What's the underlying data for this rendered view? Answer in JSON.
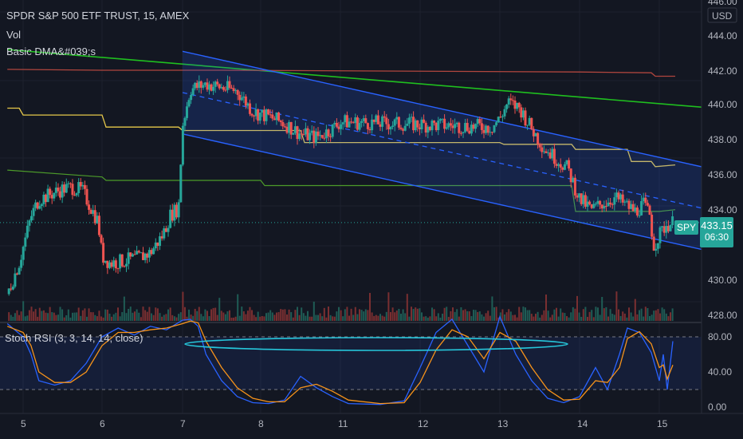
{
  "header": {
    "title": "SPDR S&P 500 ETF TRUST, 15, AMEX",
    "vol_label": "Vol",
    "dma_label": "Basic DMA&#039;s",
    "stoch_label": "Stoch RSI (3, 3, 14, 14, close)"
  },
  "price_axis": {
    "currency": "USD",
    "ticks": [
      "446.00",
      "444.00",
      "442.00",
      "440.00",
      "438.00",
      "436.00",
      "434.00",
      "430.00",
      "428.00"
    ]
  },
  "stoch_axis": {
    "ticks": [
      "80.00",
      "40.00",
      "0.00"
    ]
  },
  "time_axis": {
    "ticks": [
      "5",
      "6",
      "7",
      "8",
      "11",
      "12",
      "13",
      "14",
      "15"
    ]
  },
  "tags": {
    "symbol": "SPY",
    "price": "433.15",
    "countdown": "06:30"
  },
  "colors": {
    "background": "#131722",
    "up": "#26a69a",
    "down": "#ef5350",
    "channel": "#2962ff",
    "green_ma": "#1fbf1f",
    "red_ma": "#b0463e",
    "yellow_ma": "#e6c84a",
    "green_ma2": "#4c9a2a",
    "stoch_k": "#2962ff",
    "stoch_d": "#f7931a",
    "ellipse": "#26c6da"
  },
  "chart_data": [
    {
      "type": "candlestick",
      "title": "SPDR S&P 500 ETF TRUST, 15, AMEX",
      "x_ticks": [
        "5",
        "6",
        "7",
        "8",
        "11",
        "12",
        "13",
        "14",
        "15"
      ],
      "ylim": [
        427.2,
        446.4
      ],
      "last_price": 433.15,
      "channel": {
        "upper": [
          [
            7,
            443.1
          ],
          [
            14.3,
            435.6
          ]
        ],
        "lower": [
          [
            7,
            438.3
          ],
          [
            14.3,
            430.8
          ]
        ]
      },
      "moving_averages": [
        {
          "color": "#1fbf1f",
          "points": [
            [
              4.8,
              443.2
            ],
            [
              15.5,
              439.1
            ]
          ]
        },
        {
          "color": "#b0463e",
          "points": [
            [
              4.8,
              442.0
            ],
            [
              13.2,
              441.6
            ]
          ]
        },
        {
          "color": "#e6c84a",
          "points": [
            [
              4.8,
              439.8
            ],
            [
              13.2,
              436.5
            ]
          ]
        },
        {
          "color": "#4c9a2a",
          "points": [
            [
              4.8,
              436.2
            ],
            [
              13.2,
              433.8
            ]
          ]
        }
      ],
      "close_path": [
        [
          4.8,
          429.0
        ],
        [
          4.95,
          430.8
        ],
        [
          5.1,
          433.5
        ],
        [
          5.2,
          434.5
        ],
        [
          5.35,
          434.8
        ],
        [
          5.5,
          435.1
        ],
        [
          5.62,
          435.2
        ],
        [
          5.75,
          435.0
        ],
        [
          5.95,
          433.2
        ],
        [
          6.0,
          431.2
        ],
        [
          6.1,
          430.8
        ],
        [
          6.25,
          430.9
        ],
        [
          6.45,
          431.1
        ],
        [
          6.6,
          431.4
        ],
        [
          6.75,
          432.4
        ],
        [
          6.85,
          433.6
        ],
        [
          6.95,
          434.0
        ],
        [
          7.0,
          438.8
        ],
        [
          7.1,
          440.9
        ],
        [
          7.3,
          441.2
        ],
        [
          7.5,
          441.0
        ],
        [
          7.7,
          440.8
        ],
        [
          7.9,
          439.6
        ],
        [
          8.1,
          439.3
        ],
        [
          8.3,
          438.9
        ],
        [
          8.5,
          438.3
        ],
        [
          8.7,
          438.1
        ],
        [
          8.9,
          438.6
        ],
        [
          9.0,
          439.0
        ],
        [
          10.9,
          438.7
        ],
        [
          11.0,
          439.2
        ],
        [
          11.1,
          440.1
        ],
        [
          11.25,
          439.8
        ],
        [
          11.4,
          438.6
        ],
        [
          11.55,
          437.5
        ],
        [
          11.7,
          436.9
        ],
        [
          11.85,
          436.3
        ],
        [
          12.0,
          434.5
        ],
        [
          12.15,
          433.9
        ],
        [
          12.3,
          434.3
        ],
        [
          12.45,
          434.6
        ],
        [
          12.6,
          434.1
        ],
        [
          12.7,
          433.8
        ],
        [
          12.8,
          434.2
        ],
        [
          12.88,
          433.6
        ],
        [
          12.93,
          431.8
        ],
        [
          13.0,
          432.4
        ],
        [
          13.08,
          433.0
        ],
        [
          13.17,
          433.15
        ]
      ],
      "volume": {
        "label": "Vol"
      }
    },
    {
      "type": "line",
      "title": "Stoch RSI (3, 3, 14, 14, close)",
      "ylim": [
        -5,
        100
      ],
      "y_ticks": [
        0,
        40,
        80
      ],
      "bands": [
        20,
        80
      ],
      "series": [
        {
          "color": "#2962ff",
          "points": [
            [
              4.8,
              95
            ],
            [
              5.0,
              80
            ],
            [
              5.1,
              60
            ],
            [
              5.2,
              30
            ],
            [
              5.4,
              25
            ],
            [
              5.6,
              30
            ],
            [
              5.8,
              50
            ],
            [
              6.0,
              80
            ],
            [
              6.2,
              90
            ],
            [
              6.4,
              82
            ],
            [
              6.6,
              92
            ],
            [
              6.8,
              88
            ],
            [
              7.0,
              99
            ],
            [
              7.1,
              100
            ],
            [
              7.2,
              92
            ],
            [
              7.3,
              60
            ],
            [
              7.5,
              30
            ],
            [
              7.7,
              12
            ],
            [
              7.9,
              5
            ],
            [
              8.1,
              4
            ],
            [
              8.3,
              8
            ],
            [
              8.5,
              35
            ],
            [
              8.7,
              22
            ],
            [
              8.9,
              12
            ],
            [
              9.1,
              4
            ],
            [
              9.5,
              3
            ],
            [
              9.8,
              7
            ],
            [
              10.0,
              45
            ],
            [
              10.2,
              85
            ],
            [
              10.4,
              100
            ],
            [
              10.6,
              70
            ],
            [
              10.8,
              40
            ],
            [
              11.0,
              103
            ],
            [
              11.2,
              60
            ],
            [
              11.4,
              30
            ],
            [
              11.6,
              10
            ],
            [
              11.8,
              5
            ],
            [
              12.0,
              12
            ],
            [
              12.2,
              45
            ],
            [
              12.35,
              20
            ],
            [
              12.5,
              60
            ],
            [
              12.6,
              90
            ],
            [
              12.75,
              85
            ],
            [
              12.9,
              62
            ],
            [
              13.0,
              30
            ],
            [
              13.05,
              60
            ],
            [
              13.1,
              20
            ],
            [
              13.17,
              75
            ]
          ]
        },
        {
          "color": "#f7931a",
          "points": [
            [
              4.8,
              92
            ],
            [
              5.0,
              85
            ],
            [
              5.1,
              70
            ],
            [
              5.2,
              40
            ],
            [
              5.4,
              28
            ],
            [
              5.6,
              28
            ],
            [
              5.8,
              40
            ],
            [
              6.0,
              70
            ],
            [
              6.2,
              85
            ],
            [
              6.4,
              85
            ],
            [
              6.6,
              88
            ],
            [
              6.8,
              90
            ],
            [
              7.0,
              95
            ],
            [
              7.1,
              98
            ],
            [
              7.2,
              96
            ],
            [
              7.3,
              75
            ],
            [
              7.5,
              45
            ],
            [
              7.7,
              22
            ],
            [
              7.9,
              10
            ],
            [
              8.1,
              6
            ],
            [
              8.3,
              6
            ],
            [
              8.5,
              22
            ],
            [
              8.7,
              26
            ],
            [
              8.9,
              18
            ],
            [
              9.1,
              8
            ],
            [
              9.5,
              4
            ],
            [
              9.8,
              5
            ],
            [
              10.0,
              28
            ],
            [
              10.2,
              65
            ],
            [
              10.4,
              88
            ],
            [
              10.6,
              80
            ],
            [
              10.8,
              55
            ],
            [
              11.0,
              85
            ],
            [
              11.2,
              75
            ],
            [
              11.4,
              45
            ],
            [
              11.6,
              20
            ],
            [
              11.8,
              8
            ],
            [
              12.0,
              9
            ],
            [
              12.2,
              30
            ],
            [
              12.35,
              28
            ],
            [
              12.5,
              45
            ],
            [
              12.6,
              78
            ],
            [
              12.75,
              86
            ],
            [
              12.9,
              72
            ],
            [
              13.0,
              45
            ],
            [
              13.05,
              48
            ],
            [
              13.1,
              32
            ],
            [
              13.17,
              48
            ]
          ]
        }
      ]
    }
  ]
}
